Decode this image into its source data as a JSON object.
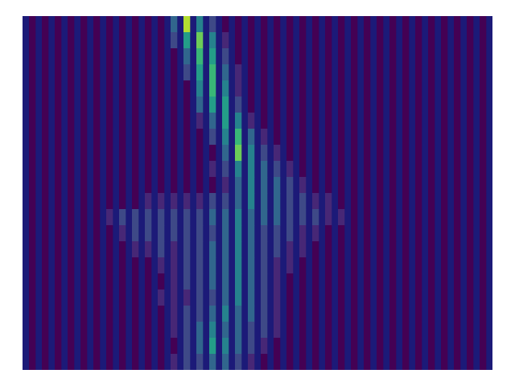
{
  "chart_data": {
    "type": "heatmap",
    "tick_labels": false,
    "xlim": [
      0,
      73
    ],
    "ylim": [
      0,
      22
    ],
    "zlim": [
      0,
      9
    ],
    "x": [
      1.5,
      3.5,
      5.5,
      7.5,
      9.5,
      11.5,
      13.5,
      15.5,
      17.5,
      19.5,
      21.5,
      23.5,
      25.5,
      27.5,
      29.5,
      31.5,
      33.5,
      35.5,
      37.5,
      39.5,
      41.5,
      43.5,
      45.5,
      47.5,
      49.5,
      51.5,
      53.5,
      55.5,
      57.5,
      59.5,
      61.5,
      63.5,
      65.5,
      67.5,
      69.5,
      71.5
    ],
    "y": [
      21.5,
      20.5,
      19.5,
      18.5,
      17.5,
      16.5,
      15.5,
      14.5,
      13.5,
      12.5,
      11.5,
      10.5,
      9.5,
      8.5,
      7.5,
      6.5,
      5.5,
      4.5,
      3.5,
      2.5,
      1.5,
      0.5
    ],
    "cells": [
      [
        0,
        0,
        0,
        0,
        0,
        0,
        0,
        0,
        0,
        0,
        0,
        3,
        8,
        4,
        2,
        0,
        0,
        0,
        0,
        0,
        0,
        0,
        0,
        0,
        0,
        0,
        0,
        0,
        0,
        0,
        0,
        0,
        0,
        0,
        0,
        0
      ],
      [
        0,
        0,
        0,
        0,
        0,
        0,
        0,
        0,
        0,
        0,
        0,
        2,
        5,
        7,
        4,
        1,
        0,
        0,
        0,
        0,
        0,
        0,
        0,
        0,
        0,
        0,
        0,
        0,
        0,
        0,
        0,
        0,
        0,
        0,
        0,
        0
      ],
      [
        0,
        0,
        0,
        0,
        0,
        0,
        0,
        0,
        0,
        0,
        0,
        0,
        3,
        6,
        5,
        2,
        0,
        0,
        0,
        0,
        0,
        0,
        0,
        0,
        0,
        0,
        0,
        0,
        0,
        0,
        0,
        0,
        0,
        0,
        0,
        0
      ],
      [
        0,
        0,
        0,
        0,
        0,
        0,
        0,
        0,
        0,
        0,
        0,
        0,
        2,
        5,
        6,
        3,
        1,
        0,
        0,
        0,
        0,
        0,
        0,
        0,
        0,
        0,
        0,
        0,
        0,
        0,
        0,
        0,
        0,
        0,
        0,
        0
      ],
      [
        0,
        0,
        0,
        0,
        0,
        0,
        0,
        0,
        0,
        0,
        0,
        0,
        0,
        4,
        6,
        4,
        1,
        0,
        0,
        0,
        0,
        0,
        0,
        0,
        0,
        0,
        0,
        0,
        0,
        0,
        0,
        0,
        0,
        0,
        0,
        0
      ],
      [
        0,
        0,
        0,
        0,
        0,
        0,
        0,
        0,
        0,
        0,
        0,
        0,
        0,
        3,
        5,
        5,
        2,
        0,
        0,
        0,
        0,
        0,
        0,
        0,
        0,
        0,
        0,
        0,
        0,
        0,
        0,
        0,
        0,
        0,
        0,
        0
      ],
      [
        0,
        0,
        0,
        0,
        0,
        0,
        0,
        0,
        0,
        0,
        0,
        0,
        0,
        1,
        3,
        5,
        4,
        1,
        0,
        0,
        0,
        0,
        0,
        0,
        0,
        0,
        0,
        0,
        0,
        0,
        0,
        0,
        0,
        0,
        0,
        0
      ],
      [
        0,
        0,
        0,
        0,
        0,
        0,
        0,
        0,
        0,
        0,
        0,
        0,
        0,
        0,
        2,
        4,
        6,
        3,
        1,
        0,
        0,
        0,
        0,
        0,
        0,
        0,
        0,
        0,
        0,
        0,
        0,
        0,
        0,
        0,
        0,
        0
      ],
      [
        0,
        0,
        0,
        0,
        0,
        0,
        0,
        0,
        0,
        0,
        0,
        0,
        0,
        0,
        0,
        3,
        7,
        4,
        2,
        1,
        0,
        0,
        0,
        0,
        0,
        0,
        0,
        0,
        0,
        0,
        0,
        0,
        0,
        0,
        0,
        0
      ],
      [
        0,
        0,
        0,
        0,
        0,
        0,
        0,
        0,
        0,
        0,
        0,
        0,
        0,
        0,
        1,
        2,
        4,
        4,
        3,
        2,
        1,
        0,
        0,
        0,
        0,
        0,
        0,
        0,
        0,
        0,
        0,
        0,
        0,
        0,
        0,
        0
      ],
      [
        0,
        0,
        0,
        0,
        0,
        0,
        0,
        0,
        0,
        0,
        0,
        0,
        0,
        0,
        0,
        1,
        3,
        4,
        3,
        3,
        2,
        1,
        0,
        0,
        0,
        0,
        0,
        0,
        0,
        0,
        0,
        0,
        0,
        0,
        0,
        0
      ],
      [
        0,
        0,
        0,
        0,
        0,
        0,
        0,
        0,
        0,
        1,
        1,
        1,
        1,
        1,
        2,
        2,
        3,
        4,
        3,
        3,
        2,
        2,
        1,
        1,
        0,
        0,
        0,
        0,
        0,
        0,
        0,
        0,
        0,
        0,
        0,
        0
      ],
      [
        0,
        0,
        0,
        0,
        0,
        0,
        1,
        2,
        2,
        2,
        2,
        2,
        2,
        2,
        3,
        3,
        4,
        3,
        3,
        3,
        2,
        2,
        2,
        1,
        1,
        0,
        0,
        0,
        0,
        0,
        0,
        0,
        0,
        0,
        0,
        0
      ],
      [
        0,
        0,
        0,
        0,
        0,
        0,
        0,
        1,
        2,
        2,
        2,
        2,
        2,
        2,
        2,
        3,
        4,
        3,
        2,
        2,
        2,
        1,
        1,
        0,
        0,
        0,
        0,
        0,
        0,
        0,
        0,
        0,
        0,
        0,
        0,
        0
      ],
      [
        0,
        0,
        0,
        0,
        0,
        0,
        0,
        0,
        1,
        1,
        2,
        1,
        2,
        2,
        3,
        3,
        4,
        3,
        2,
        2,
        1,
        1,
        0,
        0,
        0,
        0,
        0,
        0,
        0,
        0,
        0,
        0,
        0,
        0,
        0,
        0
      ],
      [
        0,
        0,
        0,
        0,
        0,
        0,
        0,
        0,
        0,
        0,
        1,
        1,
        2,
        2,
        3,
        3,
        4,
        3,
        2,
        1,
        1,
        0,
        0,
        0,
        0,
        0,
        0,
        0,
        0,
        0,
        0,
        0,
        0,
        0,
        0,
        0
      ],
      [
        0,
        0,
        0,
        0,
        0,
        0,
        0,
        0,
        0,
        0,
        0,
        1,
        2,
        2,
        3,
        3,
        4,
        3,
        2,
        1,
        0,
        0,
        0,
        0,
        0,
        0,
        0,
        0,
        0,
        0,
        0,
        0,
        0,
        0,
        0,
        0
      ],
      [
        0,
        0,
        0,
        0,
        0,
        0,
        0,
        0,
        0,
        0,
        1,
        1,
        1,
        2,
        2,
        3,
        4,
        3,
        2,
        1,
        0,
        0,
        0,
        0,
        0,
        0,
        0,
        0,
        0,
        0,
        0,
        0,
        0,
        0,
        0,
        0
      ],
      [
        0,
        0,
        0,
        0,
        0,
        0,
        0,
        0,
        0,
        0,
        0,
        1,
        2,
        2,
        3,
        4,
        3,
        3,
        2,
        1,
        0,
        0,
        0,
        0,
        0,
        0,
        0,
        0,
        0,
        0,
        0,
        0,
        0,
        0,
        0,
        0
      ],
      [
        0,
        0,
        0,
        0,
        0,
        0,
        0,
        0,
        0,
        0,
        0,
        1,
        2,
        3,
        4,
        3,
        3,
        2,
        2,
        1,
        0,
        0,
        0,
        0,
        0,
        0,
        0,
        0,
        0,
        0,
        0,
        0,
        0,
        0,
        0,
        0
      ],
      [
        0,
        0,
        0,
        0,
        0,
        0,
        0,
        0,
        0,
        0,
        0,
        0,
        2,
        3,
        5,
        4,
        3,
        2,
        1,
        0,
        0,
        0,
        0,
        0,
        0,
        0,
        0,
        0,
        0,
        0,
        0,
        0,
        0,
        0,
        0,
        0
      ],
      [
        0,
        0,
        0,
        0,
        0,
        0,
        0,
        0,
        0,
        0,
        0,
        1,
        2,
        2,
        3,
        3,
        2,
        1,
        0,
        0,
        0,
        0,
        0,
        0,
        0,
        0,
        0,
        0,
        0,
        0,
        0,
        0,
        0,
        0,
        0,
        0
      ]
    ]
  }
}
